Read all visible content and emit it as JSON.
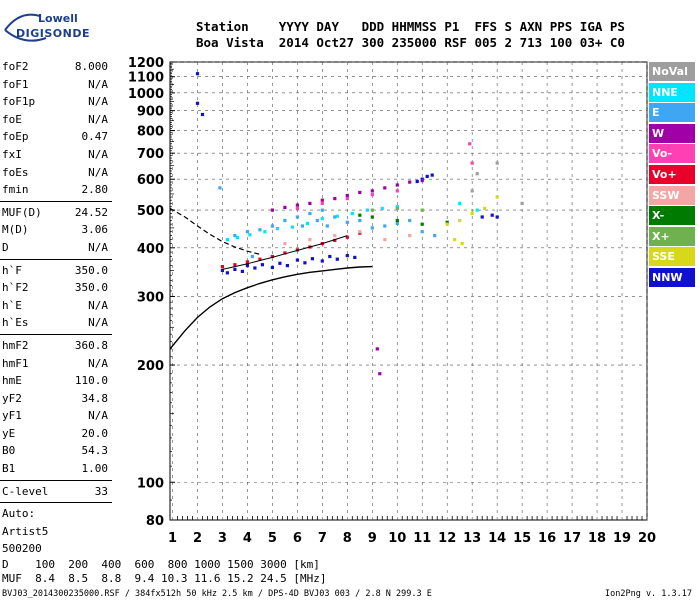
{
  "logo": {
    "line1": "Lowell",
    "line2": "DIGISONDE"
  },
  "header": {
    "line1": "Station    YYYY DAY   DDD HHMMSS P1  FFS S AXN PPS IGA PS",
    "line2": "Boa Vista  2014 Oct27 300 235000 RSF 005 2 713 100 03+ C0"
  },
  "params": [
    {
      "label": "foF2",
      "value": "8.000"
    },
    {
      "label": "foF1",
      "value": "N/A"
    },
    {
      "label": "foF1p",
      "value": "N/A"
    },
    {
      "label": "foE",
      "value": "N/A"
    },
    {
      "label": "foEp",
      "value": "0.47"
    },
    {
      "label": "fxI",
      "value": "N/A"
    },
    {
      "label": "foEs",
      "value": "N/A"
    },
    {
      "label": "fmin",
      "value": "2.80"
    },
    {
      "label": "MUF(D)",
      "value": "24.52"
    },
    {
      "label": "M(D)",
      "value": "3.06"
    },
    {
      "label": "D",
      "value": "N/A"
    },
    {
      "label": "h`F",
      "value": "350.0"
    },
    {
      "label": "h`F2",
      "value": "350.0"
    },
    {
      "label": "h`E",
      "value": "N/A"
    },
    {
      "label": "h`Es",
      "value": "N/A"
    },
    {
      "label": "hmF2",
      "value": "360.8"
    },
    {
      "label": "hmF1",
      "value": "N/A"
    },
    {
      "label": "hmE",
      "value": "110.0"
    },
    {
      "label": "yF2",
      "value": "34.8"
    },
    {
      "label": "yF1",
      "value": "N/A"
    },
    {
      "label": "yE",
      "value": "20.0"
    },
    {
      "label": "B0",
      "value": "54.3"
    },
    {
      "label": "B1",
      "value": "1.00"
    },
    {
      "label": "C-level",
      "value": "33"
    },
    {
      "label": "Auto:",
      "value": ""
    },
    {
      "label": "Artist5",
      "value": ""
    },
    {
      "label": "500200",
      "value": ""
    }
  ],
  "legend": [
    {
      "label": "NoVal",
      "color": "#9e9e9e"
    },
    {
      "label": "NNE",
      "color": "#00e5ff"
    },
    {
      "label": "E",
      "color": "#3ea6f2"
    },
    {
      "label": "W",
      "color": "#a000a8"
    },
    {
      "label": "Vo-",
      "color": "#ff3fb4"
    },
    {
      "label": "Vo+",
      "color": "#e8002a"
    },
    {
      "label": "SSW",
      "color": "#f4a6a6"
    },
    {
      "label": "X-",
      "color": "#007a00"
    },
    {
      "label": "X+",
      "color": "#6fb04f"
    },
    {
      "label": "SSE",
      "color": "#d8d81a"
    },
    {
      "label": "NNW",
      "color": "#1010d0"
    }
  ],
  "footer": {
    "d_label": "D",
    "muf_label": "MUF",
    "d_values": "100  200  400  600  800 1000 1500 3000 [km]",
    "muf_values": "8.4  8.5  8.8  9.4 10.3 11.6 15.2 24.5 [MHz]",
    "file": "BVJ03_2014300235000.RSF / 384fx512h 50 kHz 2.5 km / DPS-4D BVJ03 003 / 2.8 N 299.3 E",
    "version": "Ion2Png v. 1.3.17"
  },
  "chart_data": {
    "type": "scatter",
    "title": "",
    "xlabel": "",
    "ylabel": "",
    "xlim": [
      0.9,
      20
    ],
    "ylim": [
      80,
      1200
    ],
    "x_ticks": [
      1,
      2,
      3,
      4,
      5,
      6,
      7,
      8,
      9,
      10,
      11,
      12,
      13,
      14,
      15,
      16,
      17,
      18,
      19,
      20
    ],
    "y_ticks": [
      80,
      100,
      200,
      300,
      400,
      500,
      600,
      700,
      800,
      900,
      1000,
      1100,
      1200
    ],
    "y_scale": "log",
    "grid": true,
    "legend_position": "right",
    "profile_curve": {
      "x": [
        0.9,
        1.5,
        2.0,
        2.5,
        3.0,
        3.5,
        4.0,
        4.5,
        5.0,
        5.5,
        6.0,
        6.5,
        7.0,
        7.5,
        8.0,
        8.5,
        9.0
      ],
      "y": [
        220,
        245,
        265,
        282,
        296,
        307,
        316,
        324,
        331,
        337,
        342,
        346,
        349,
        352,
        355,
        357,
        358
      ]
    },
    "dashed_curve": {
      "x": [
        0.9,
        1.5,
        2.0,
        2.5,
        3.0,
        3.5,
        4.0,
        4.5
      ],
      "y": [
        505,
        480,
        455,
        433,
        415,
        402,
        392,
        385
      ]
    },
    "trace_curve": {
      "x": [
        3.0,
        3.5,
        4.0,
        4.5,
        5.0,
        5.5,
        6.0,
        6.5,
        7.0,
        7.5,
        8.0
      ],
      "y": [
        352,
        358,
        364,
        371,
        378,
        386,
        394,
        402,
        410,
        420,
        430
      ]
    },
    "series": [
      {
        "name": "NNW",
        "points": [
          [
            3.0,
            350
          ],
          [
            3.2,
            345
          ],
          [
            3.5,
            352
          ],
          [
            3.8,
            348
          ],
          [
            4.0,
            360
          ],
          [
            4.3,
            355
          ],
          [
            4.6,
            362
          ],
          [
            5.0,
            356
          ],
          [
            5.3,
            365
          ],
          [
            5.6,
            360
          ],
          [
            6.0,
            372
          ],
          [
            6.3,
            366
          ],
          [
            6.6,
            375
          ],
          [
            7.0,
            370
          ],
          [
            7.3,
            380
          ],
          [
            7.6,
            374
          ],
          [
            8.0,
            382
          ],
          [
            8.3,
            378
          ],
          [
            11.0,
            600
          ],
          [
            11.2,
            610
          ],
          [
            11.4,
            615
          ],
          [
            10.8,
            592
          ],
          [
            13.4,
            480
          ],
          [
            13.8,
            485
          ],
          [
            14.0,
            480
          ],
          [
            2.0,
            1120
          ],
          [
            2.0,
            940
          ],
          [
            2.2,
            880
          ]
        ]
      },
      {
        "name": "E",
        "points": [
          [
            3.5,
            430
          ],
          [
            4.0,
            440
          ],
          [
            4.5,
            445
          ],
          [
            5.0,
            455
          ],
          [
            5.5,
            470
          ],
          [
            6.0,
            480
          ],
          [
            6.5,
            490
          ],
          [
            7.0,
            500
          ],
          [
            7.5,
            480
          ],
          [
            8.0,
            465
          ],
          [
            8.5,
            470
          ],
          [
            9.0,
            450
          ],
          [
            9.5,
            455
          ],
          [
            10.0,
            462
          ],
          [
            10.5,
            470
          ],
          [
            11.0,
            440
          ],
          [
            11.5,
            430
          ],
          [
            6.2,
            455
          ],
          [
            6.8,
            470
          ],
          [
            7.2,
            455
          ],
          [
            2.9,
            570
          ],
          [
            4.2,
            380
          ]
        ]
      },
      {
        "name": "NNE",
        "points": [
          [
            3.2,
            420
          ],
          [
            3.6,
            425
          ],
          [
            4.1,
            432
          ],
          [
            4.7,
            440
          ],
          [
            5.2,
            448
          ],
          [
            5.8,
            452
          ],
          [
            6.4,
            462
          ],
          [
            7.0,
            475
          ],
          [
            7.6,
            482
          ],
          [
            8.2,
            490
          ],
          [
            8.8,
            500
          ],
          [
            9.4,
            505
          ],
          [
            10.0,
            510
          ],
          [
            12.5,
            520
          ],
          [
            13.2,
            500
          ]
        ]
      },
      {
        "name": "W",
        "points": [
          [
            5.0,
            500
          ],
          [
            5.5,
            508
          ],
          [
            6.0,
            515
          ],
          [
            6.5,
            520
          ],
          [
            7.0,
            530
          ],
          [
            7.5,
            535
          ],
          [
            8.0,
            545
          ],
          [
            8.5,
            555
          ],
          [
            9.0,
            560
          ],
          [
            9.5,
            570
          ],
          [
            10.0,
            580
          ],
          [
            10.5,
            590
          ],
          [
            11.0,
            595
          ],
          [
            9.2,
            220
          ],
          [
            9.3,
            190
          ]
        ]
      },
      {
        "name": "Vo+",
        "points": [
          [
            3.0,
            358
          ],
          [
            3.5,
            362
          ],
          [
            4.0,
            368
          ],
          [
            4.5,
            374
          ],
          [
            5.0,
            380
          ],
          [
            5.5,
            388
          ],
          [
            6.0,
            395
          ],
          [
            6.5,
            402
          ],
          [
            7.0,
            410
          ],
          [
            7.5,
            418
          ],
          [
            8.0,
            426
          ],
          [
            8.5,
            436
          ]
        ]
      },
      {
        "name": "Vo-",
        "points": [
          [
            6.0,
            505
          ],
          [
            7.0,
            520
          ],
          [
            8.0,
            535
          ],
          [
            9.0,
            548
          ],
          [
            10.0,
            560
          ],
          [
            12.9,
            740
          ],
          [
            13.0,
            660
          ]
        ]
      },
      {
        "name": "SSW",
        "points": [
          [
            5.5,
            410
          ],
          [
            6.5,
            420
          ],
          [
            7.5,
            430
          ],
          [
            8.5,
            440
          ],
          [
            9.5,
            420
          ],
          [
            10.5,
            430
          ]
        ]
      },
      {
        "name": "X-",
        "points": [
          [
            8.5,
            485
          ],
          [
            9.0,
            480
          ],
          [
            10.0,
            470
          ],
          [
            11.0,
            460
          ],
          [
            12.0,
            465
          ]
        ]
      },
      {
        "name": "X+",
        "points": [
          [
            9.0,
            500
          ],
          [
            10.0,
            505
          ],
          [
            11.0,
            500
          ]
        ]
      },
      {
        "name": "SSE",
        "points": [
          [
            12.0,
            460
          ],
          [
            12.5,
            470
          ],
          [
            13.0,
            490
          ],
          [
            13.5,
            505
          ],
          [
            14.0,
            540
          ],
          [
            12.3,
            420
          ],
          [
            12.6,
            410
          ]
        ]
      },
      {
        "name": "NoVal",
        "points": [
          [
            13.0,
            560
          ],
          [
            13.2,
            620
          ],
          [
            14.0,
            660
          ],
          [
            15.0,
            520
          ]
        ]
      }
    ]
  }
}
